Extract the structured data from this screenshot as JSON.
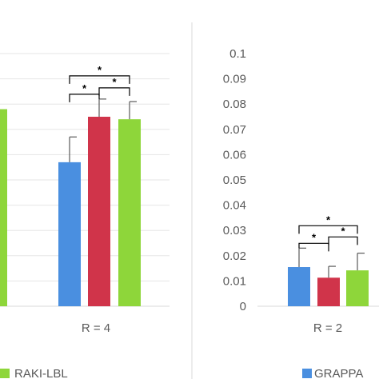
{
  "chart_data": [
    {
      "type": "bar",
      "categories": [
        "R = 4"
      ],
      "series": [
        {
          "name": "",
          "color": "#4a8fe0",
          "values": [
            0.057
          ],
          "errors": [
            0.01
          ]
        },
        {
          "name": "",
          "color": "#d0344a",
          "values": [
            0.075
          ],
          "errors": [
            0.007
          ]
        },
        {
          "name": "RAKI-LBL",
          "color": "#8ed63a",
          "values": [
            0.074
          ],
          "errors": [
            0.007
          ]
        }
      ],
      "partial_bar_left": {
        "color": "#8ed63a",
        "value": 0.078
      },
      "significance": [
        {
          "from": 0,
          "to": 1,
          "label": "*"
        },
        {
          "from": 1,
          "to": 2,
          "label": "*"
        },
        {
          "from": 0,
          "to": 2,
          "label": "*"
        }
      ],
      "ylim": [
        0,
        0.1
      ],
      "grid": true
    },
    {
      "type": "bar",
      "categories": [
        "R = 2"
      ],
      "series": [
        {
          "name": "GRAPPA",
          "color": "#4a8fe0",
          "values": [
            0.0155
          ],
          "errors": [
            0.0075
          ]
        },
        {
          "name": "",
          "color": "#d0344a",
          "values": [
            0.0113
          ],
          "errors": [
            0.0045
          ]
        },
        {
          "name": "",
          "color": "#8ed63a",
          "values": [
            0.0142
          ],
          "errors": [
            0.0068
          ]
        }
      ],
      "significance": [
        {
          "from": 0,
          "to": 1,
          "label": "*"
        },
        {
          "from": 1,
          "to": 2,
          "label": "*"
        },
        {
          "from": 0,
          "to": 2,
          "label": "*"
        }
      ],
      "yticks": [
        "0",
        "0.01",
        "0.02",
        "0.03",
        "0.04",
        "0.05",
        "0.06",
        "0.07",
        "0.08",
        "0.09",
        "0.1"
      ],
      "ylim": [
        0,
        0.1
      ],
      "grid": false
    }
  ],
  "colors": {
    "axis": "#d9d9d9",
    "text": "#595959",
    "bracket": "#000000"
  }
}
